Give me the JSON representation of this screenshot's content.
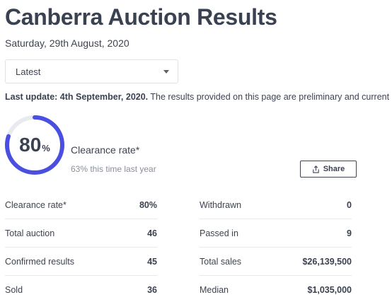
{
  "header": {
    "title": "Canberra Auction Results",
    "date": "Saturday, 29th August, 2020"
  },
  "filter": {
    "selected": "Latest"
  },
  "update": {
    "label": "Last update: 4th September, 2020.",
    "text": " The results provided on this page are preliminary and current"
  },
  "summary": {
    "rate_number": "80",
    "rate_unit": "%",
    "rate_fraction": 0.8,
    "label": "Clearance rate*",
    "comparison": "63% this time last year",
    "accent_color": "#4b4fe0",
    "track_color": "#e9eaf0"
  },
  "share": {
    "label": "Share"
  },
  "stats_left": [
    {
      "label": "Clearance rate*",
      "value": "80%"
    },
    {
      "label": "Total auction",
      "value": "46"
    },
    {
      "label": "Confirmed results",
      "value": "45"
    },
    {
      "label": "Sold",
      "value": "36"
    }
  ],
  "stats_right": [
    {
      "label": "Withdrawn",
      "value": "0"
    },
    {
      "label": "Passed in",
      "value": "9"
    },
    {
      "label": "Total sales",
      "value": "$26,139,500"
    },
    {
      "label": "Median",
      "value": "$1,035,000"
    }
  ]
}
